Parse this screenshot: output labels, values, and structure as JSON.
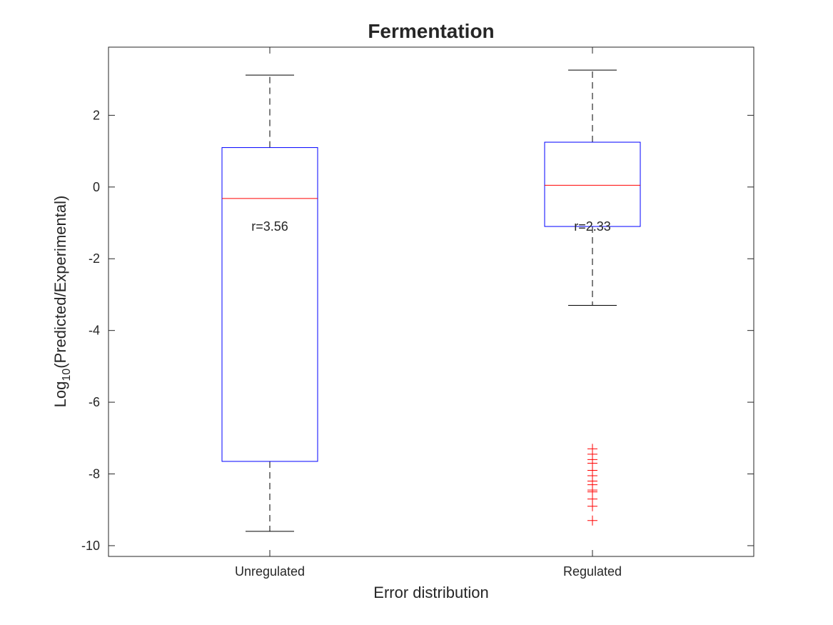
{
  "chart_data": {
    "type": "box",
    "title": "Fermentation",
    "xlabel": "Error distribution",
    "ylabel_base": "Log",
    "ylabel_subscript": "10",
    "ylabel_rest": "(Predicted/Experimental)",
    "ylim": [
      -10.3,
      3.9
    ],
    "yticks": [
      2,
      0,
      -2,
      -4,
      -6,
      -8,
      -10
    ],
    "yticks_labels": [
      "2",
      "0",
      "-2",
      "-4",
      "-6",
      "-8",
      "-10"
    ],
    "categories": [
      "Unregulated",
      "Regulated"
    ],
    "boxes": [
      {
        "category": "Unregulated",
        "q1": -7.65,
        "median": -0.32,
        "q3": 1.1,
        "whisker_low": -9.6,
        "whisker_high": 3.12,
        "outliers": [],
        "annotation": "r=3.56",
        "annotation_y": -1.1
      },
      {
        "category": "Regulated",
        "q1": -1.1,
        "median": 0.05,
        "q3": 1.25,
        "whisker_low": -3.3,
        "whisker_high": 3.26,
        "outliers": [
          -7.3,
          -7.45,
          -7.6,
          -7.7,
          -7.9,
          -8.05,
          -8.2,
          -8.3,
          -8.45,
          -8.5,
          -8.7,
          -8.9,
          -9.3
        ],
        "annotation": "r=2.33",
        "annotation_y": -1.1
      }
    ],
    "colors": {
      "box": "#0000ff",
      "median": "#ff0000",
      "whisker": "#000000",
      "outlier": "#ff0000",
      "axis": "#262626"
    },
    "grid": false,
    "legend": "none"
  }
}
